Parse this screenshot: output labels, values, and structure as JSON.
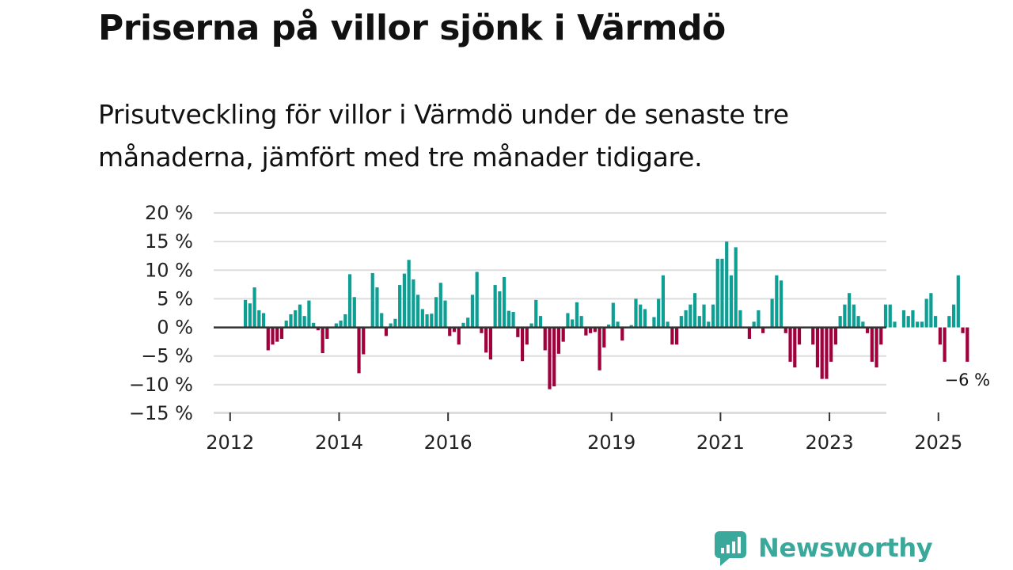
{
  "header": {
    "title": "Priserna på villor sjönk i Värmdö",
    "subtitle": "Prisutveckling för villor i Värmdö under de senaste tre månaderna, jämfört med tre månader tidigare."
  },
  "brand": {
    "name": "Newsworthy"
  },
  "colors": {
    "positive": "#0d9e94",
    "negative": "#a0003c",
    "grid": "#dddddd",
    "zero": "#333333",
    "brand": "#3aa89b"
  },
  "chart_data": {
    "type": "bar",
    "title": "Prisutveckling för villor i Värmdö",
    "ylim": [
      -15,
      20
    ],
    "y_ticks": [
      {
        "value": 20,
        "label": "20 %"
      },
      {
        "value": 15,
        "label": "15 %"
      },
      {
        "value": 10,
        "label": "10 %"
      },
      {
        "value": 5,
        "label": "5 %"
      },
      {
        "value": 0,
        "label": "0 %"
      },
      {
        "value": -5,
        "label": "−5 %"
      },
      {
        "value": -10,
        "label": "−10 %"
      },
      {
        "value": -15,
        "label": "−15 %"
      }
    ],
    "x_start": 2012.25,
    "x_ticks": [
      {
        "value": 2012,
        "label": "2012"
      },
      {
        "value": 2014,
        "label": "2014"
      },
      {
        "value": 2016,
        "label": "2016"
      },
      {
        "value": 2019,
        "label": "2019"
      },
      {
        "value": 2021,
        "label": "2021"
      },
      {
        "value": 2023,
        "label": "2023"
      },
      {
        "value": 2025,
        "label": "2025"
      }
    ],
    "series": [
      {
        "name": "Prisutveckling (%)",
        "values": [
          4.8,
          4.2,
          7,
          3,
          2.5,
          -4,
          -3,
          -2.5,
          -2,
          1.2,
          2.3,
          3,
          4,
          2,
          4.7,
          0.8,
          -0.5,
          -4.5,
          -2,
          0,
          0.7,
          1.2,
          2.3,
          9.3,
          5.3,
          -8,
          -4.7,
          0,
          9.5,
          7,
          2.5,
          -1.5,
          0.7,
          1.5,
          7.4,
          9.4,
          11.8,
          8.4,
          5.7,
          3.2,
          2.3,
          2.4,
          5.3,
          7.8,
          4.7,
          -1.5,
          -0.8,
          -3,
          0.8,
          1.7,
          5.7,
          9.7,
          -1,
          -4.4,
          -5.6,
          7.4,
          6.3,
          8.8,
          2.9,
          2.7,
          -1.7,
          -5.9,
          -3,
          0.7,
          4.8,
          2,
          -4,
          -10.8,
          -10.3,
          -4.6,
          -2.5,
          2.5,
          1.4,
          4.4,
          2,
          -1.4,
          -1,
          -0.8,
          -7.5,
          -3.5,
          0.5,
          4.3,
          1,
          -2.3,
          0,
          0.4,
          5,
          4,
          3.2,
          0,
          1.8,
          5,
          9.1,
          1,
          -3,
          -3,
          2,
          3,
          4,
          6,
          2,
          4,
          1,
          4,
          12,
          12,
          15,
          9.1,
          14,
          3,
          0,
          -2,
          1,
          3,
          -1,
          0,
          5,
          9.1,
          8.2,
          -1,
          -6,
          -7,
          -3,
          0,
          0,
          -3,
          -7,
          -9,
          -9,
          -6,
          -3,
          2,
          4,
          6,
          4,
          2,
          1,
          -1,
          -6,
          -7,
          -3,
          4,
          4,
          1,
          0,
          3,
          2,
          3,
          1,
          1,
          5,
          6,
          2,
          -3,
          -6,
          2,
          4,
          9.1,
          -1,
          -6
        ]
      }
    ],
    "annotation": {
      "label": "−6 %",
      "value": -6,
      "anchor": "last-bar"
    }
  }
}
